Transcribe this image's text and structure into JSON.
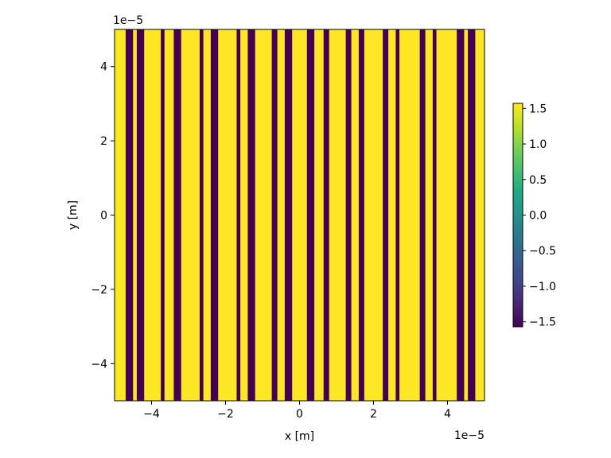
{
  "chart_data": {
    "type": "heatmap",
    "title": "",
    "xlabel": "x [m]",
    "ylabel": "y [m]",
    "x_offset_text": "1e−5",
    "y_offset_text": "1e−5",
    "xlim": [
      -5,
      5
    ],
    "ylim": [
      -5,
      5
    ],
    "x_ticks": [
      -4,
      -2,
      0,
      2,
      4
    ],
    "x_tick_labels": [
      "−4",
      "−2",
      "0",
      "2",
      "4"
    ],
    "y_ticks": [
      -4,
      -2,
      0,
      2,
      4
    ],
    "y_tick_labels": [
      "−4",
      "−2",
      "0",
      "2",
      "4"
    ],
    "grid": false,
    "colormap": "viridis",
    "colors": {
      "high": "#fde725",
      "low": "#440154"
    },
    "value_range": [
      -1.5708,
      1.5708
    ],
    "low_value_bands_x": [
      [
        -4.7,
        -4.5
      ],
      [
        -4.4,
        -4.2
      ],
      [
        -3.75,
        -3.65
      ],
      [
        -3.4,
        -3.2
      ],
      [
        -2.7,
        -2.6
      ],
      [
        -2.4,
        -2.2
      ],
      [
        -1.7,
        -1.6
      ],
      [
        -1.4,
        -1.2
      ],
      [
        -0.75,
        -0.6
      ],
      [
        -0.4,
        -0.2
      ],
      [
        0.2,
        0.4
      ],
      [
        0.65,
        0.8
      ],
      [
        1.25,
        1.4
      ],
      [
        1.6,
        1.75
      ],
      [
        2.25,
        2.4
      ],
      [
        2.6,
        2.7
      ],
      [
        3.25,
        3.4
      ],
      [
        3.6,
        3.7
      ],
      [
        4.25,
        4.45
      ],
      [
        4.55,
        4.75
      ]
    ],
    "colorbar": {
      "ticks": [
        1.5,
        1.0,
        0.5,
        0.0,
        -0.5,
        -1.0,
        -1.5
      ],
      "tick_labels": [
        "1.5",
        "1.0",
        "0.5",
        "0.0",
        "−0.5",
        "−1.0",
        "−1.5"
      ],
      "range": [
        -1.5708,
        1.5708
      ]
    }
  }
}
